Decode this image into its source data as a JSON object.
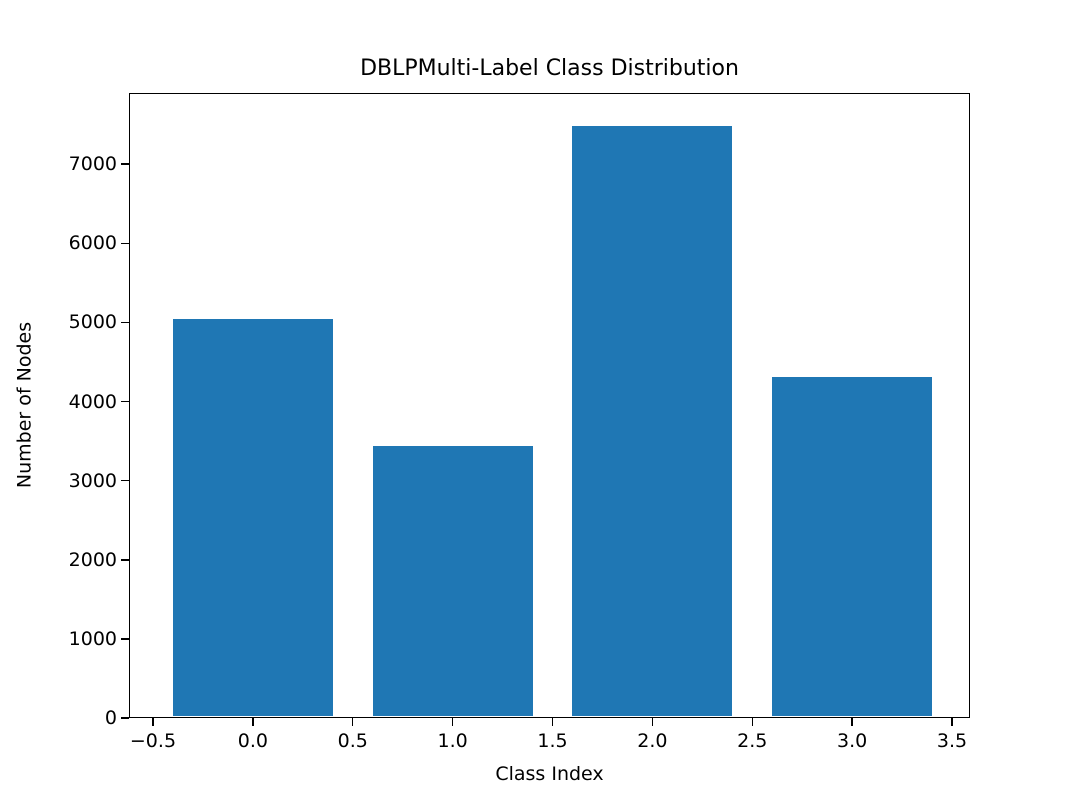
{
  "chart_data": {
    "type": "bar",
    "title": "DBLPMulti-Label Class Distribution",
    "xlabel": "Class Index",
    "ylabel": "Number of Nodes",
    "categories": [
      0,
      1,
      2,
      3
    ],
    "values": [
      5040,
      3440,
      7480,
      4310
    ],
    "bar_width": 0.8,
    "bar_color": "#1f77b4",
    "xlim": [
      -0.62,
      3.59
    ],
    "ylim": [
      0,
      7900
    ],
    "x_ticks": [
      -0.5,
      0.0,
      0.5,
      1.0,
      1.5,
      2.0,
      2.5,
      3.0,
      3.5
    ],
    "x_tick_labels": [
      "−0.5",
      "0.0",
      "0.5",
      "1.0",
      "1.5",
      "2.0",
      "2.5",
      "3.0",
      "3.5"
    ],
    "y_ticks": [
      0,
      1000,
      2000,
      3000,
      4000,
      5000,
      6000,
      7000
    ],
    "y_tick_labels": [
      "0",
      "1000",
      "2000",
      "3000",
      "4000",
      "5000",
      "6000",
      "7000"
    ],
    "grid": false,
    "legend": "none",
    "axis_color": "#000000",
    "background_color": "#ffffff"
  }
}
